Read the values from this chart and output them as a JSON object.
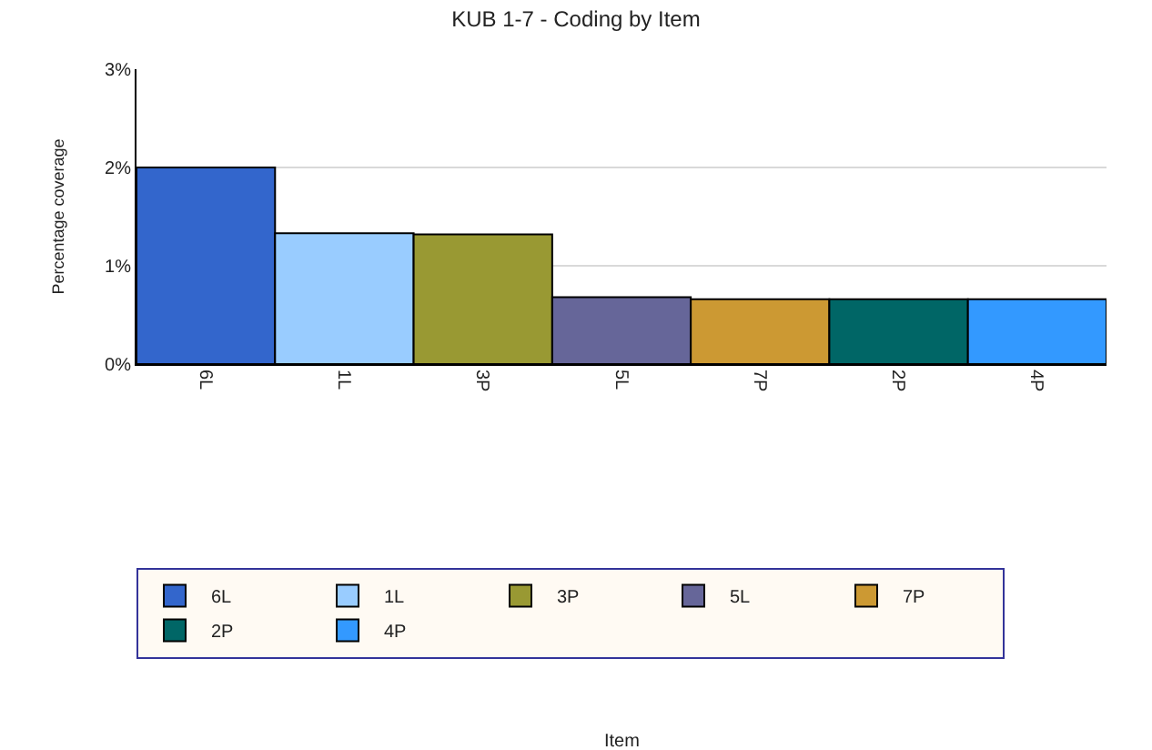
{
  "chart_data": {
    "type": "bar",
    "title": "KUB 1-7 - Coding by Item",
    "annotations": [
      "Item"
    ],
    "ylabel": "Percentage coverage",
    "categories": [
      "6L",
      "1L",
      "3P",
      "5L",
      "7P",
      "2P",
      "4P"
    ],
    "series": [
      {
        "name": "6L",
        "color": "#3366cc",
        "values": [
          2.0,
          null,
          null,
          null,
          null,
          null,
          null
        ]
      },
      {
        "name": "1L",
        "color": "#99ccff",
        "values": [
          null,
          1.33,
          null,
          null,
          null,
          null,
          null
        ]
      },
      {
        "name": "3P",
        "color": "#999933",
        "values": [
          null,
          null,
          1.32,
          null,
          null,
          null,
          null
        ]
      },
      {
        "name": "5L",
        "color": "#666699",
        "values": [
          null,
          null,
          null,
          0.68,
          null,
          null,
          null
        ]
      },
      {
        "name": "7P",
        "color": "#cc9933",
        "values": [
          null,
          null,
          null,
          null,
          0.66,
          null,
          null
        ]
      },
      {
        "name": "2P",
        "color": "#006666",
        "values": [
          null,
          null,
          null,
          null,
          null,
          0.66,
          null
        ]
      },
      {
        "name": "4P",
        "color": "#3399ff",
        "values": [
          null,
          null,
          null,
          null,
          null,
          null,
          0.66
        ]
      }
    ],
    "ylim": [
      0,
      3
    ],
    "yticks": [
      {
        "value": 0,
        "label": "0%"
      },
      {
        "value": 1,
        "label": "1%"
      },
      {
        "value": 2,
        "label": "2%"
      },
      {
        "value": 3,
        "label": "3%"
      }
    ],
    "grid": "y",
    "legend": "bottom"
  }
}
